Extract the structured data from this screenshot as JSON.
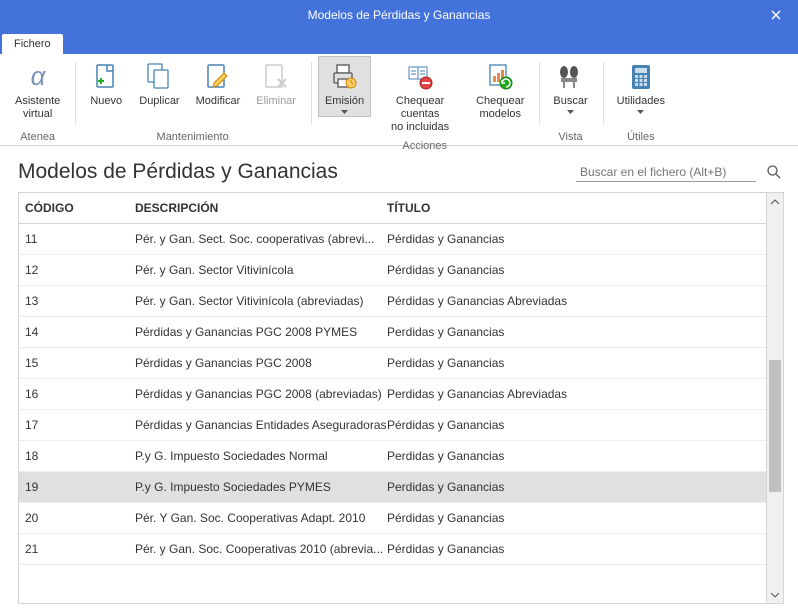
{
  "window": {
    "title": "Modelos de Pérdidas y Ganancias"
  },
  "tabs": [
    {
      "label": "Fichero",
      "active": true
    }
  ],
  "ribbon": {
    "groups": [
      {
        "label": "Atenea",
        "items": [
          {
            "id": "asistente",
            "label": "Asistente",
            "label2": "virtual",
            "icon": "assistant",
            "interact": true
          }
        ]
      },
      {
        "label": "Mantenimiento",
        "items": [
          {
            "id": "nuevo",
            "label": "Nuevo",
            "icon": "new",
            "interact": true
          },
          {
            "id": "duplicar",
            "label": "Duplicar",
            "icon": "duplicate",
            "interact": true
          },
          {
            "id": "modificar",
            "label": "Modificar",
            "icon": "edit",
            "interact": true
          },
          {
            "id": "eliminar",
            "label": "Eliminar",
            "icon": "delete",
            "interact": true,
            "disabled": true
          }
        ]
      },
      {
        "label": "Acciones",
        "items": [
          {
            "id": "emision",
            "label": "Emisión",
            "icon": "print",
            "interact": true,
            "active": true,
            "hasDropdown": true
          },
          {
            "id": "chequear-cuentas",
            "label": "Chequear cuentas",
            "label2": "no incluidas",
            "icon": "check-accounts",
            "interact": true
          },
          {
            "id": "chequear-modelos",
            "label": "Chequear",
            "label2": "modelos",
            "icon": "check-models",
            "interact": true
          }
        ]
      },
      {
        "label": "Vista",
        "items": [
          {
            "id": "buscar",
            "label": "Buscar",
            "icon": "search",
            "interact": true,
            "hasDropdown": true
          }
        ]
      },
      {
        "label": "Útiles",
        "items": [
          {
            "id": "utilidades",
            "label": "Utilidades",
            "icon": "calc",
            "interact": true,
            "hasDropdown": true
          }
        ]
      }
    ]
  },
  "page": {
    "heading": "Modelos de Pérdidas y Ganancias",
    "search_placeholder": "Buscar en el fichero (Alt+B)"
  },
  "grid": {
    "columns": [
      {
        "key": "codigo",
        "label": "CÓDIGO"
      },
      {
        "key": "descripcion",
        "label": "DESCRIPCIÓN"
      },
      {
        "key": "titulo",
        "label": "TÍTULO"
      }
    ],
    "rows": [
      {
        "codigo": "11",
        "descripcion": "Pér. y Gan. Sect. Soc. cooperativas (abrevi...",
        "titulo": "Pérdidas y Ganancias"
      },
      {
        "codigo": "12",
        "descripcion": "Pér. y Gan. Sector Vitivinícola",
        "titulo": "Pérdidas y Ganancias"
      },
      {
        "codigo": "13",
        "descripcion": "Pér. y Gan. Sector Vitivinícola (abreviadas)",
        "titulo": "Pérdidas y Ganancias Abreviadas"
      },
      {
        "codigo": "14",
        "descripcion": "Pérdidas y Ganancias PGC 2008 PYMES",
        "titulo": "Perdidas y Ganancias"
      },
      {
        "codigo": "15",
        "descripcion": "Pérdidas y Ganancias PGC 2008",
        "titulo": "Perdidas y Ganancias"
      },
      {
        "codigo": "16",
        "descripcion": "Pérdidas y Ganancias PGC 2008 (abreviadas)",
        "titulo": "Perdidas y Ganancias Abreviadas"
      },
      {
        "codigo": "17",
        "descripcion": "Pérdidas y Ganancias Entidades Aseguradoras",
        "titulo": "Pérdidas y Ganancias"
      },
      {
        "codigo": "18",
        "descripcion": "P.y G. Impuesto Sociedades Normal",
        "titulo": "Perdidas y Ganancias"
      },
      {
        "codigo": "19",
        "descripcion": "P.y G.  Impuesto Sociedades PYMES",
        "titulo": "Perdidas y Ganancias",
        "selected": true
      },
      {
        "codigo": "20",
        "descripcion": "Pér. Y Gan.  Soc. Cooperativas Adapt. 2010",
        "titulo": "Pérdidas y Ganancias"
      },
      {
        "codigo": "21",
        "descripcion": "Pér. y Gan. Soc. Cooperativas 2010 (abrevia...",
        "titulo": "Pérdidas y Ganancias"
      }
    ]
  },
  "colors": {
    "accent": "#4472db",
    "border": "#d4d4d4",
    "selected_row": "#e0e0e0",
    "ribbon_active": "#e0e0e0"
  },
  "scrollbar": {
    "thumb_top_pct": 40,
    "thumb_height_pct": 35
  }
}
